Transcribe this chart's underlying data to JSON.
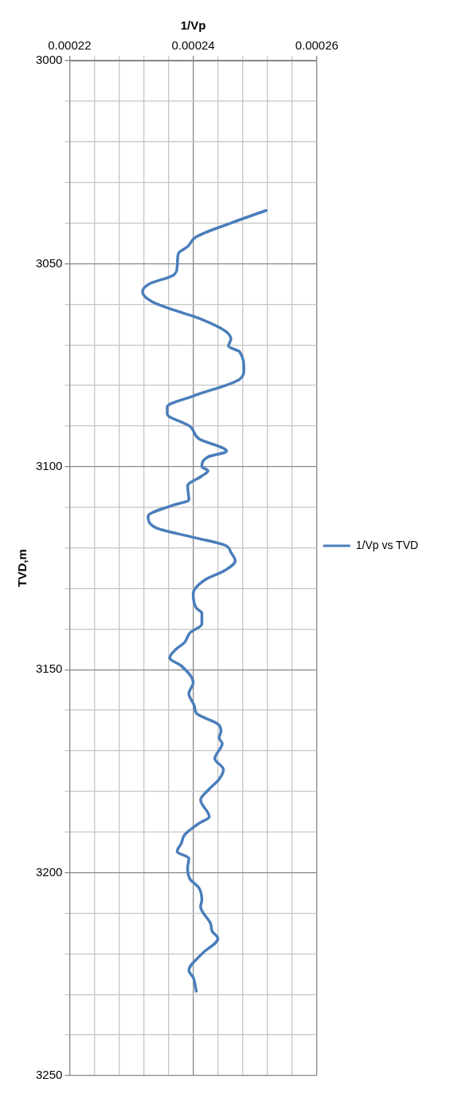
{
  "chart_data": {
    "type": "line",
    "xlabel": "1/Vp",
    "ylabel": "TVD,m",
    "xlim": [
      0.00022,
      0.00026
    ],
    "xticks": [
      0.00022,
      {
        "value": 0.000224,
        "label": null
      },
      {
        "value": 0.000228,
        "label": null
      },
      {
        "value": 0.000232,
        "label": null
      },
      {
        "value": 0.000236,
        "label": null
      },
      0.00024,
      {
        "value": 0.000244,
        "label": null
      },
      {
        "value": 0.000248,
        "label": null
      },
      {
        "value": 0.000252,
        "label": null
      },
      {
        "value": 0.000256,
        "label": null
      },
      0.00026
    ],
    "ylim": [
      3250,
      3000
    ],
    "yticks": [
      3000,
      {
        "value": 3010,
        "label": null
      },
      {
        "value": 3020,
        "label": null
      },
      {
        "value": 3030,
        "label": null
      },
      {
        "value": 3040,
        "label": null
      },
      3050,
      {
        "value": 3060,
        "label": null
      },
      {
        "value": 3070,
        "label": null
      },
      {
        "value": 3080,
        "label": null
      },
      {
        "value": 3090,
        "label": null
      },
      3100,
      {
        "value": 3110,
        "label": null
      },
      {
        "value": 3120,
        "label": null
      },
      {
        "value": 3130,
        "label": null
      },
      {
        "value": 3140,
        "label": null
      },
      3150,
      {
        "value": 3160,
        "label": null
      },
      {
        "value": 3170,
        "label": null
      },
      {
        "value": 3180,
        "label": null
      },
      {
        "value": 3190,
        "label": null
      },
      3200,
      {
        "value": 3210,
        "label": null
      },
      {
        "value": 3220,
        "label": null
      },
      {
        "value": 3230,
        "label": null
      },
      {
        "value": 3240,
        "label": null
      },
      3250
    ],
    "grid": true,
    "legend": "right",
    "marker": "none",
    "line_style": "solid",
    "series": [
      {
        "name": "1/Vp vs TVD",
        "color": "#4a7ebb",
        "x": [
          0.0002518,
          0.0002461,
          0.0002405,
          0.0002391,
          0.0002376,
          0.0002374,
          0.0002367,
          0.0002329,
          0.0002318,
          0.0002334,
          0.0002376,
          0.0002405,
          0.0002452,
          0.0002461,
          0.0002457,
          0.0002475,
          0.0002482,
          0.0002475,
          0.00024,
          0.0002358,
          0.0002358,
          0.0002395,
          0.0002409,
          0.0002454,
          0.0002424,
          0.0002414,
          0.0002424,
          0.0002414,
          0.0002391,
          0.0002393,
          0.0002367,
          0.0002327,
          0.0002339,
          0.00024,
          0.0002452,
          0.0002461,
          0.0002468,
          0.0002452,
          0.0002419,
          0.00024,
          0.0002405,
          0.0002414,
          0.0002414,
          0.0002395,
          0.0002386,
          0.0002372,
          0.0002362,
          0.0002381,
          0.00024,
          0.0002393,
          0.0002402,
          0.0002405,
          0.000244,
          0.0002445,
          0.0002442,
          0.0002447,
          0.0002435,
          0.0002449,
          0.0002442,
          0.0002426,
          0.0002412,
          0.0002426,
          0.0002409,
          0.0002386,
          0.0002381,
          0.0002374,
          0.0002393,
          0.0002391,
          0.0002395,
          0.0002409,
          0.0002414,
          0.0002412,
          0.0002428,
          0.0002431,
          0.000244,
          0.0002414,
          0.0002393,
          0.00024,
          0.0002405
        ],
        "values": [
          3036.9,
          3040,
          3043.4,
          3045.8,
          3047.5,
          3050.9,
          3052.9,
          3055,
          3057,
          3059.4,
          3061.8,
          3063.2,
          3066.6,
          3068.6,
          3070.3,
          3071.7,
          3076.1,
          3078.5,
          3082.6,
          3085.3,
          3087,
          3090.1,
          3093.1,
          3096.2,
          3097.6,
          3100,
          3101,
          3102.3,
          3104.7,
          3108.2,
          3109.5,
          3112.2,
          3115,
          3117.4,
          3119.4,
          3121.1,
          3123.2,
          3125.5,
          3127.9,
          3131.3,
          3134.8,
          3136.1,
          3138.8,
          3140.9,
          3143.3,
          3145,
          3147.1,
          3149.1,
          3153.2,
          3155.9,
          3159,
          3160.7,
          3163.4,
          3165.1,
          3166.8,
          3168.2,
          3171.9,
          3174.6,
          3177,
          3179.4,
          3182.1,
          3186.2,
          3187.9,
          3190.7,
          3192.7,
          3194.8,
          3196.5,
          3198.9,
          3201.6,
          3203.7,
          3206.7,
          3208.4,
          3212.5,
          3214.5,
          3216.2,
          3220,
          3224.1,
          3225.8,
          3229.2
        ]
      }
    ]
  }
}
